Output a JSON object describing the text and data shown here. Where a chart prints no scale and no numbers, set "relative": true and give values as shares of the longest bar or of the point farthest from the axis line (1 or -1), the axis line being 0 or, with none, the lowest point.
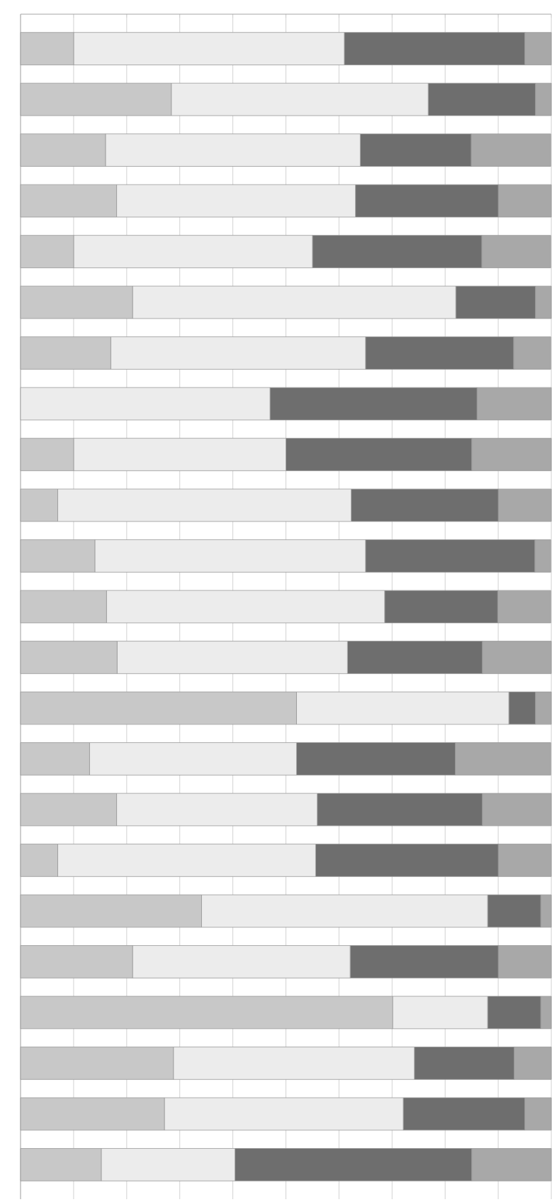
{
  "chart_data": {
    "type": "bar",
    "orientation": "horizontal",
    "stacked": true,
    "relative": true,
    "grid": "x",
    "categories": [
      null,
      null,
      null,
      null,
      null,
      null,
      null,
      null,
      null,
      null,
      null,
      null,
      null,
      null,
      null,
      null,
      null,
      null,
      null,
      null,
      null,
      null,
      null
    ],
    "series": [
      {
        "color": "#c8c8c8",
        "values": [
          0.1,
          0.284,
          0.16,
          0.181,
          0.1,
          0.211,
          0.17,
          0,
          0.1,
          0.07,
          0.14,
          0.162,
          0.182,
          0.52,
          0.13,
          0.181,
          0.07,
          0.341,
          0.211,
          0.701,
          0.288,
          0.271,
          0.152
        ]
      },
      {
        "color": "#ececec",
        "values": [
          0.51,
          0.484,
          0.48,
          0.45,
          0.45,
          0.609,
          0.48,
          0.47,
          0.4,
          0.553,
          0.51,
          0.524,
          0.434,
          0.4,
          0.39,
          0.378,
          0.486,
          0.539,
          0.41,
          0.179,
          0.454,
          0.45,
          0.252
        ]
      },
      {
        "color": "#6e6e6e",
        "values": [
          0.34,
          0.202,
          0.209,
          0.269,
          0.319,
          0.15,
          0.279,
          0.39,
          0.35,
          0.277,
          0.319,
          0.213,
          0.254,
          0.05,
          0.299,
          0.311,
          0.344,
          0.1,
          0.279,
          0.1,
          0.188,
          0.229,
          0.446
        ]
      },
      {
        "color": "#a8a8a8",
        "values": [
          0.05,
          0.03,
          0.15,
          0.1,
          0.13,
          0.03,
          0.07,
          0.14,
          0.15,
          0.1,
          0.03,
          0.1,
          0.13,
          0.03,
          0.18,
          0.13,
          0.1,
          0.02,
          0.1,
          0.02,
          0.07,
          0.05,
          0.15
        ]
      }
    ]
  }
}
